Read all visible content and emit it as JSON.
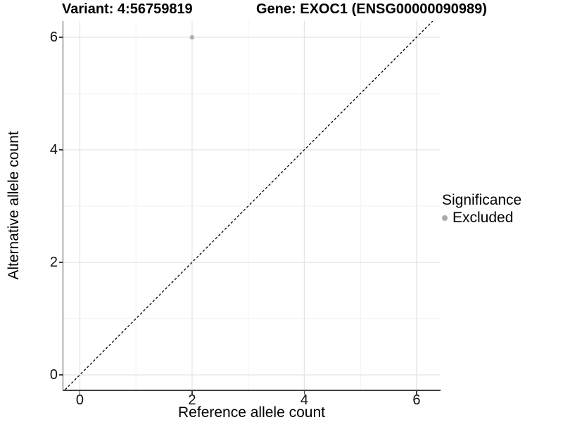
{
  "chart_data": {
    "type": "scatter",
    "title_left": "Variant: 4:56759819",
    "title_right": "Gene: EXOC1 (ENSG00000090989)",
    "xlabel": "Reference allele count",
    "ylabel": "Alternative allele count",
    "xlim": [
      -0.294,
      6.415
    ],
    "ylim": [
      -0.2625,
      6.2875
    ],
    "xticks": [
      0,
      2,
      4,
      6
    ],
    "yticks": [
      0,
      2,
      4,
      6
    ],
    "xminor": [
      1,
      3,
      5
    ],
    "yminor": [
      1,
      3,
      5
    ],
    "grid": "major+minor",
    "series": [
      {
        "name": "Excluded",
        "color": "#b4b4b4",
        "marker": "circle",
        "points": [
          [
            2,
            6
          ]
        ]
      }
    ],
    "reference_line": {
      "slope": 1,
      "intercept": 0,
      "style": "dashed",
      "color": "#000000"
    },
    "legend": {
      "title": "Significance",
      "position": "right",
      "entries": [
        {
          "label": "Excluded",
          "color": "#aaaaaa",
          "marker": "circle"
        }
      ]
    },
    "colors": {
      "grid_major": "#e4e4e4",
      "grid_minor": "#f1f1f1",
      "axis": "#404040",
      "text": "#000000"
    }
  }
}
